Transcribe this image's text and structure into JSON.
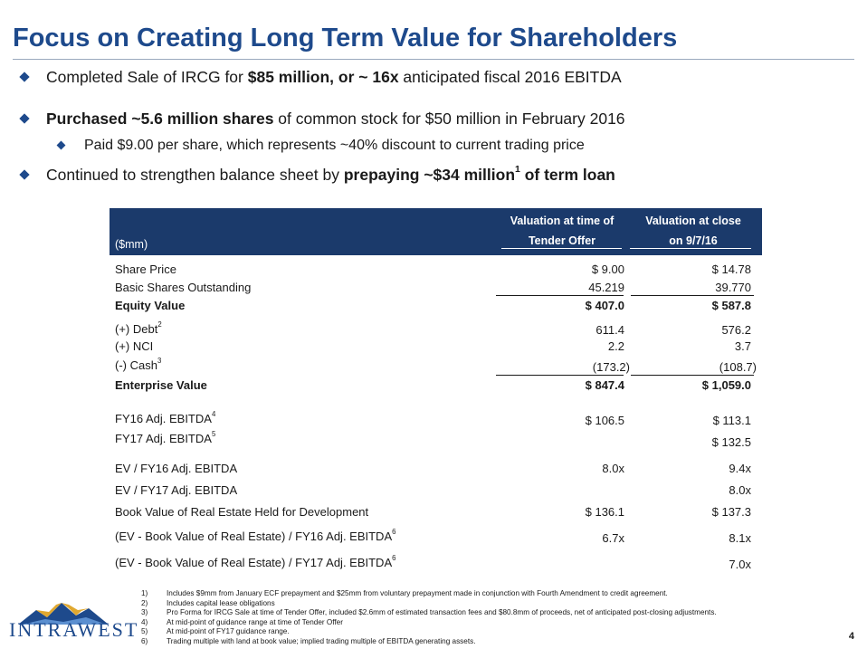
{
  "title": "Focus on Creating Long Term Value for Shareholders",
  "bullets": {
    "b1": {
      "pre": "Completed Sale of IRCG for ",
      "bold": "$85 million, or ~ 16x",
      "post": " anticipated fiscal 2016 EBITDA"
    },
    "b2": {
      "bold": "Purchased ~5.6 million shares",
      "post": " of common stock for $50 million in February 2016"
    },
    "b2sub": "Paid $9.00 per share, which represents ~40% discount to current trading price",
    "b3": {
      "pre": "Continued to strengthen balance sheet by ",
      "bold": "prepaying ~$34 million",
      "sup": "1",
      "boldpost": " of term loan"
    }
  },
  "table": {
    "units_label": "($mm)",
    "col1": {
      "line1": "Valuation at time of",
      "line2": "Tender Offer"
    },
    "col2": {
      "line1": "Valuation at close",
      "line2": "on 9/7/16"
    },
    "rows": [
      {
        "label": "Share Price",
        "v1": "$ 9.00",
        "v2": "$ 14.78"
      },
      {
        "label": "Basic Shares Outstanding",
        "v1": "45.219",
        "v2": "39.770"
      },
      {
        "label": "Equity Value",
        "v1": "$ 407.0",
        "v2": "$ 587.8"
      },
      {
        "label": "(+) Debt",
        "sup": "2",
        "v1": "611.4",
        "v2": "576.2"
      },
      {
        "label": "(+) NCI",
        "v1": "2.2",
        "v2": "3.7"
      },
      {
        "label": "(-) Cash",
        "sup": "3",
        "v1": "(173.2)",
        "v2": "(108.7)"
      },
      {
        "label": "Enterprise Value",
        "v1": "$ 847.4",
        "v2": "$ 1,059.0"
      },
      {
        "label": "FY16 Adj. EBITDA",
        "sup": "4",
        "v1": "$ 106.5",
        "v2": "$ 113.1"
      },
      {
        "label": "FY17 Adj. EBITDA",
        "sup": "5",
        "v1": "",
        "v2": "$ 132.5"
      },
      {
        "label": "EV / FY16 Adj. EBITDA",
        "v1": "8.0x",
        "v2": "9.4x"
      },
      {
        "label": "EV / FY17 Adj. EBITDA",
        "v1": "",
        "v2": "8.0x"
      },
      {
        "label": "Book Value of Real Estate Held for Development",
        "v1": "$ 136.1",
        "v2": "$ 137.3"
      },
      {
        "label": "(EV - Book Value of Real Estate) / FY16 Adj. EBITDA",
        "sup": "6",
        "v1": "6.7x",
        "v2": "8.1x"
      },
      {
        "label": "(EV - Book Value of Real Estate) / FY17 Adj. EBITDA",
        "sup": "6",
        "v1": "",
        "v2": "7.0x"
      }
    ]
  },
  "footnotes": [
    {
      "n": "1)",
      "text": "Includes $9mm from January ECF prepayment and $25mm from voluntary prepayment made in conjunction with Fourth Amendment to credit agreement."
    },
    {
      "n": "2)",
      "text": "Includes capital lease obligations"
    },
    {
      "n": "3)",
      "text": "Pro Forma for IRCG Sale at time of Tender Offer, included $2.6mm of estimated transaction fees and $80.8mm of proceeds, net of anticipated post-closing adjustments."
    },
    {
      "n": "4)",
      "text": "At mid-point of guidance range at time of Tender Offer"
    },
    {
      "n": "5)",
      "text": "At mid-point of FY17 guidance range."
    },
    {
      "n": "6)",
      "text": "Trading multiple with land at book value; implied trading multiple of EBITDA generating assets."
    }
  ],
  "logo_text": "INTRAWEST",
  "page_number": "4",
  "colors": {
    "brand_blue": "#1e4a8c",
    "header_navy": "#1b3a6b",
    "logo_gold": "#e0a830"
  }
}
